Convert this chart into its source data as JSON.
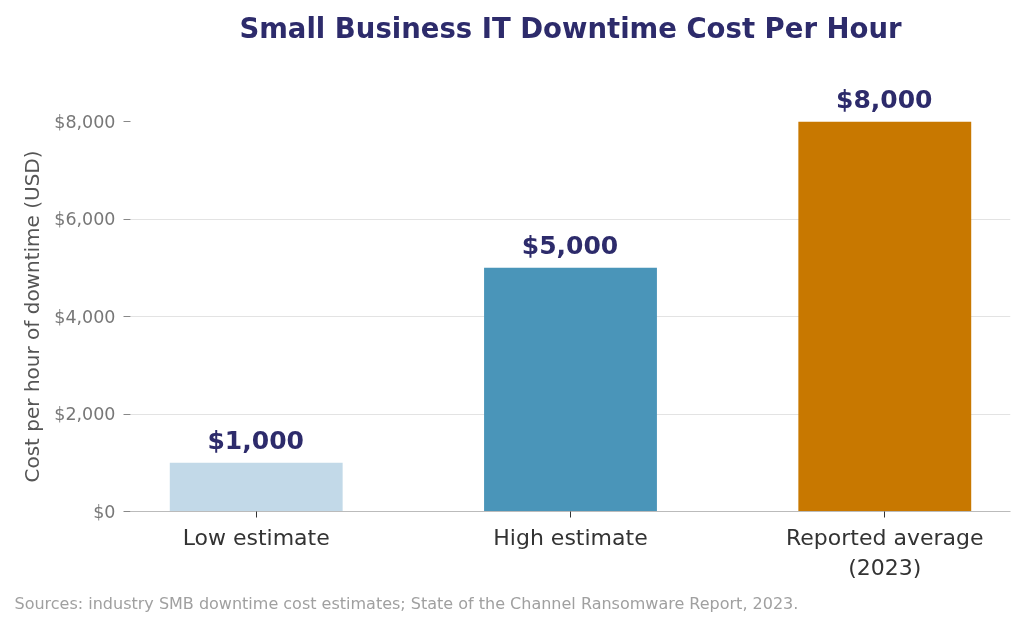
{
  "chart_data": {
    "type": "bar",
    "title": "Small Business IT Downtime Cost Per Hour",
    "ylabel": "Cost per hour of downtime (USD)",
    "categories": [
      "Low estimate",
      "High estimate",
      "Reported average\n(2023)"
    ],
    "values": [
      1000,
      5000,
      8000
    ],
    "colors": [
      "#c2d9e8",
      "#4a95b9",
      "#c87800"
    ],
    "value_labels": [
      "$1,000",
      "$5,000",
      "$8,000"
    ],
    "ylim": [
      0,
      8000
    ],
    "yticks": [
      {
        "value": 0,
        "label": "$0"
      },
      {
        "value": 2000,
        "label": "$2,000"
      },
      {
        "value": 4000,
        "label": "$4,000"
      },
      {
        "value": 6000,
        "label": "$6,000"
      },
      {
        "value": 8000,
        "label": "$8,000"
      }
    ],
    "grid": "y",
    "annotations": [
      "Sources: industry SMB downtime cost estimates; State of the Channel Ransomware Report, 2023."
    ]
  }
}
